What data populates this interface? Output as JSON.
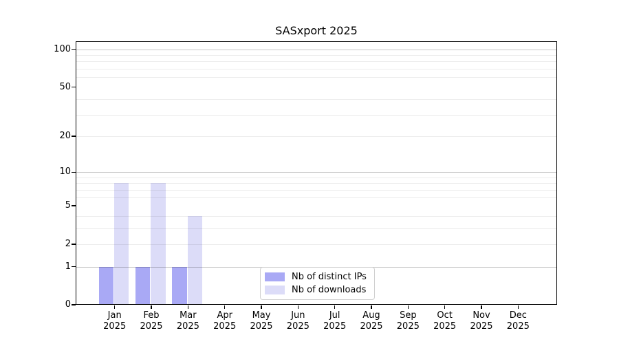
{
  "title": "SASxport 2025",
  "chart_data": {
    "type": "bar",
    "title": "SASxport 2025",
    "categories": [
      "Jan",
      "Feb",
      "Mar",
      "Apr",
      "May",
      "Jun",
      "Jul",
      "Aug",
      "Sep",
      "Oct",
      "Nov",
      "Dec"
    ],
    "category_year": "2025",
    "series": [
      {
        "name": "Nb of distinct IPs",
        "color": "#a9a9f5",
        "values": [
          1,
          1,
          1,
          0,
          0,
          0,
          0,
          0,
          0,
          0,
          0,
          0
        ]
      },
      {
        "name": "Nb of downloads",
        "color": "#dcdcf8",
        "values": [
          8,
          8,
          4,
          0,
          0,
          0,
          0,
          0,
          0,
          0,
          0,
          0
        ]
      }
    ],
    "xlabel": "",
    "ylabel": "",
    "y_scale": "log1p",
    "ylim": [
      0,
      115
    ],
    "y_ticks": [
      0,
      1,
      2,
      5,
      10,
      20,
      50,
      100
    ],
    "grid": {
      "major_values": [
        1,
        10,
        100
      ],
      "minor_values": [
        2,
        3,
        4,
        6,
        7,
        8,
        9,
        20,
        30,
        40,
        60,
        70,
        80,
        90
      ],
      "major_color": "rgba(0,0,0,0.22)",
      "minor_color": "rgba(0,0,0,0.075)"
    },
    "legend_position": "inside-bottom-center"
  }
}
